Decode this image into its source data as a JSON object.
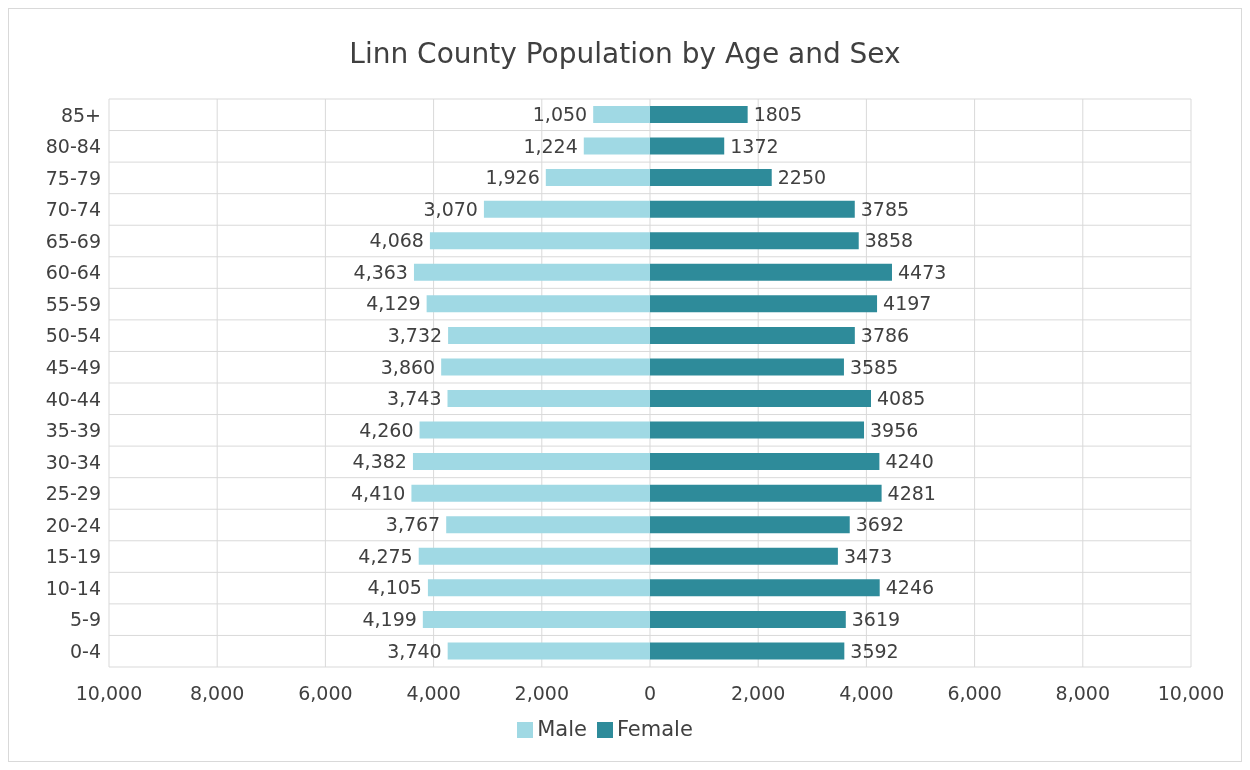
{
  "chart_data": {
    "type": "bar",
    "orientation": "horizontal",
    "title": "Linn County Population by Age and Sex",
    "categories": [
      "85+",
      "80-84",
      "75-79",
      "70-74",
      "65-69",
      "60-64",
      "55-59",
      "50-54",
      "45-49",
      "40-44",
      "35-39",
      "30-34",
      "25-29",
      "20-24",
      "15-19",
      "10-14",
      "5-9",
      "0-4"
    ],
    "series": [
      {
        "name": "Male",
        "color": "#a0d9e4",
        "base": [
          -1050,
          -1224,
          -1926,
          -3070,
          -4068,
          -4363,
          -4129,
          -3732,
          -3860,
          -3743,
          -4260,
          -4382,
          -4410,
          -3767,
          -4275,
          -4105,
          -4199,
          -3740
        ],
        "values": [
          1050,
          1224,
          1926,
          3070,
          4068,
          4363,
          4129,
          3732,
          3860,
          3743,
          4260,
          4382,
          4410,
          3767,
          4275,
          4105,
          4199,
          3740
        ],
        "value_labels": [
          "1,050",
          "1,224",
          "1,926",
          "3,070",
          "4,068",
          "4,363",
          "4,129",
          "3,732",
          "3,860",
          "3,743",
          "4,260",
          "4,382",
          "4,410",
          "3,767",
          "4,275",
          "4,105",
          "4,199",
          "3,740"
        ]
      },
      {
        "name": "Female",
        "color": "#2e8b9a",
        "values": [
          1805,
          1372,
          2250,
          3785,
          3858,
          4473,
          4197,
          3786,
          3585,
          4085,
          3956,
          4240,
          4281,
          3692,
          3473,
          4246,
          3619,
          3592
        ],
        "value_labels": [
          "1805",
          "1372",
          "2250",
          "3785",
          "3858",
          "4473",
          "4197",
          "3786",
          "3585",
          "4085",
          "3956",
          "4240",
          "4281",
          "3692",
          "3473",
          "4246",
          "3619",
          "3592"
        ]
      }
    ],
    "xlim": [
      -10000,
      10000
    ],
    "xticks": [
      {
        "value": -10000,
        "label": "10,000"
      },
      {
        "value": -8000,
        "label": "8,000"
      },
      {
        "value": -6000,
        "label": "6,000"
      },
      {
        "value": -4000,
        "label": "4,000"
      },
      {
        "value": -2000,
        "label": "2,000"
      },
      0,
      {
        "value": 2000,
        "label": "2,000"
      },
      {
        "value": 4000,
        "label": "4,000"
      },
      {
        "value": 6000,
        "label": "6,000"
      },
      {
        "value": 8000,
        "label": "8,000"
      },
      {
        "value": 10000,
        "label": "10,000"
      }
    ],
    "grid": true,
    "legend": "bottom"
  }
}
